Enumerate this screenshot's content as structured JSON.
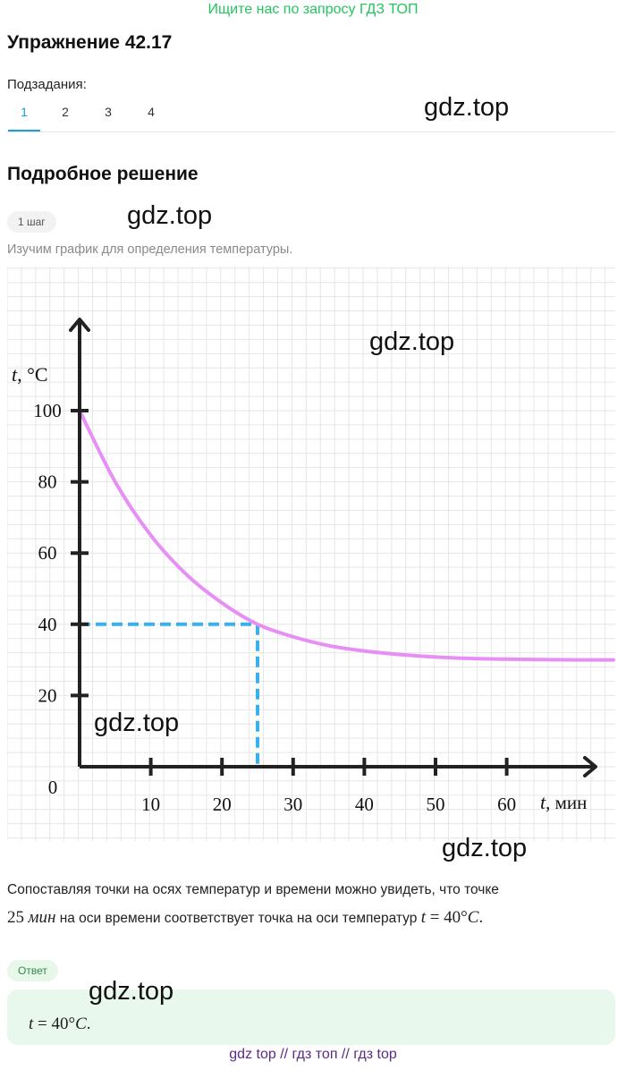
{
  "banner": "Ищите нас по запросу ГДЗ ТОП",
  "title": "Упражнение 42.17",
  "subtasks": {
    "label": "Подзадания:",
    "tabs": [
      "1",
      "2",
      "3",
      "4"
    ],
    "active": "1"
  },
  "watermark": "gdz.top",
  "section_title": "Подробное решение",
  "step_badge": "1 шаг",
  "step_text": "Изучим график для определения температуры.",
  "chart_data": {
    "type": "line",
    "xlabel": "t,  мин",
    "ylabel": "t,  °C",
    "origin_label": "0",
    "x_ticks": [
      "10",
      "20",
      "30",
      "40",
      "50",
      "60"
    ],
    "y_ticks": [
      "20",
      "40",
      "60",
      "80",
      "100"
    ],
    "xlim": [
      0,
      75
    ],
    "ylim": [
      0,
      125
    ],
    "grid": true,
    "series": [
      {
        "color": "#e68ff4",
        "x": [
          0,
          5,
          10,
          15,
          20,
          25,
          30,
          35,
          40,
          45,
          50,
          55,
          60,
          65,
          70,
          75
        ],
        "y": [
          100,
          80,
          65,
          54,
          46,
          40,
          36.5,
          34,
          32.5,
          31.5,
          30.8,
          30.4,
          30.2,
          30.1,
          30,
          30
        ]
      }
    ],
    "guide": {
      "x": 25,
      "y": 40,
      "color": "#3bb0ea"
    }
  },
  "paragraph": {
    "line1": "Сопоставляя точки на осях температур и времени можно увидеть, что точке",
    "value": "25",
    "unit": "мин",
    "line2": "на оси времени соответствует точка на оси температур",
    "eq_var": "t",
    "eq_rest": " = 40°",
    "eq_unit": "C",
    "eq_end": "."
  },
  "answer": {
    "badge": "Ответ",
    "var": "t",
    "rest": " = 40°",
    "unit": "C",
    "end": "."
  },
  "footer": "gdz top  //  гдз топ  //  гдз top"
}
